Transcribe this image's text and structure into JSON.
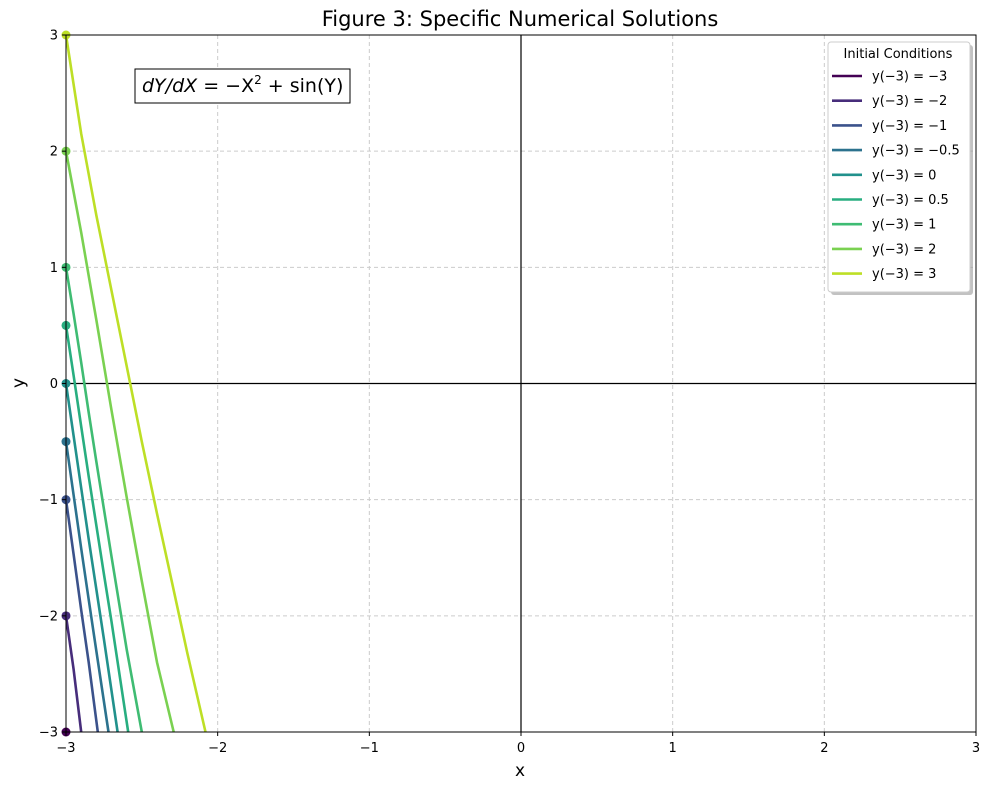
{
  "chart_data": {
    "type": "line",
    "title": "Figure 3: Specific Numerical Solutions",
    "xlabel": "x",
    "ylabel": "y",
    "xlim": [
      -3,
      3
    ],
    "ylim": [
      -3,
      3
    ],
    "xticks": [
      -3,
      -2,
      -1,
      0,
      1,
      2,
      3
    ],
    "yticks": [
      -3,
      -2,
      -1,
      0,
      1,
      2,
      3
    ],
    "xtick_labels": [
      "−3",
      "−2",
      "−1",
      "0",
      "1",
      "2",
      "3"
    ],
    "ytick_labels": [
      "−3",
      "−2",
      "−1",
      "0",
      "1",
      "2",
      "3"
    ],
    "grid": true,
    "grid_style": "dashed",
    "legend_title": "Initial Conditions",
    "legend_position": "top-right",
    "annotation": {
      "lhs": "dY/dX",
      "rhs": " = −X",
      "exponent": "2",
      "rest": " + sin(Y)"
    },
    "series": [
      {
        "name": "y(−3) = −3",
        "color": "#440154",
        "x0": -3,
        "y0": -3,
        "x": [
          -3.0
        ],
        "y": [
          -3.0
        ]
      },
      {
        "name": "y(−3) = −2",
        "color": "#472d7b",
        "x0": -3,
        "y0": -2,
        "x": [
          -3.0,
          -2.95,
          -2.9
        ],
        "y": [
          -2.0,
          -2.46,
          -3.0
        ]
      },
      {
        "name": "y(−3) = −1",
        "color": "#3b528b",
        "x0": -3,
        "y0": -1,
        "x": [
          -3.0,
          -2.95,
          -2.9,
          -2.85,
          -2.79
        ],
        "y": [
          -1.0,
          -1.47,
          -1.95,
          -2.4,
          -3.0
        ]
      },
      {
        "name": "y(−3) = −0.5",
        "color": "#2c728e",
        "x0": -3,
        "y0": -0.5,
        "x": [
          -3.0,
          -2.95,
          -2.9,
          -2.85,
          -2.8,
          -2.72
        ],
        "y": [
          -0.5,
          -0.96,
          -1.42,
          -1.86,
          -2.3,
          -3.0
        ]
      },
      {
        "name": "y(−3) = 0",
        "color": "#21918c",
        "x0": -3,
        "y0": 0,
        "x": [
          -3.0,
          -2.95,
          -2.9,
          -2.85,
          -2.8,
          -2.75,
          -2.66
        ],
        "y": [
          0.0,
          -0.45,
          -0.9,
          -1.34,
          -1.77,
          -2.2,
          -3.0
        ]
      },
      {
        "name": "y(−3) = 0.5",
        "color": "#28ae80",
        "x0": -3,
        "y0": 0.5,
        "x": [
          -3.0,
          -2.95,
          -2.9,
          -2.85,
          -2.8,
          -2.75,
          -2.7,
          -2.59
        ],
        "y": [
          0.5,
          0.07,
          -0.37,
          -0.8,
          -1.22,
          -1.64,
          -2.05,
          -3.0
        ]
      },
      {
        "name": "y(−3) = 1",
        "color": "#3fbc73",
        "x0": -3,
        "y0": 1,
        "x": [
          -3.0,
          -2.95,
          -2.9,
          -2.85,
          -2.8,
          -2.7,
          -2.6,
          -2.5
        ],
        "y": [
          1.0,
          0.6,
          0.18,
          -0.25,
          -0.67,
          -1.49,
          -2.29,
          -3.0
        ]
      },
      {
        "name": "y(−3) = 2",
        "color": "#7ad151",
        "x0": -3,
        "y0": 2,
        "x": [
          -3.0,
          -2.9,
          -2.8,
          -2.7,
          -2.6,
          -2.5,
          -2.4,
          -2.29
        ],
        "y": [
          2.0,
          1.3,
          0.55,
          -0.23,
          -0.98,
          -1.7,
          -2.4,
          -3.0
        ]
      },
      {
        "name": "y(−3) = 3",
        "color": "#bddf26",
        "x0": -3,
        "y0": 3,
        "x": [
          -3.0,
          -2.9,
          -2.8,
          -2.7,
          -2.6,
          -2.5,
          -2.4,
          -2.3,
          -2.2,
          -2.08
        ],
        "y": [
          3.0,
          2.15,
          1.45,
          0.8,
          0.15,
          -0.5,
          -1.12,
          -1.72,
          -2.32,
          -3.0
        ]
      }
    ]
  }
}
